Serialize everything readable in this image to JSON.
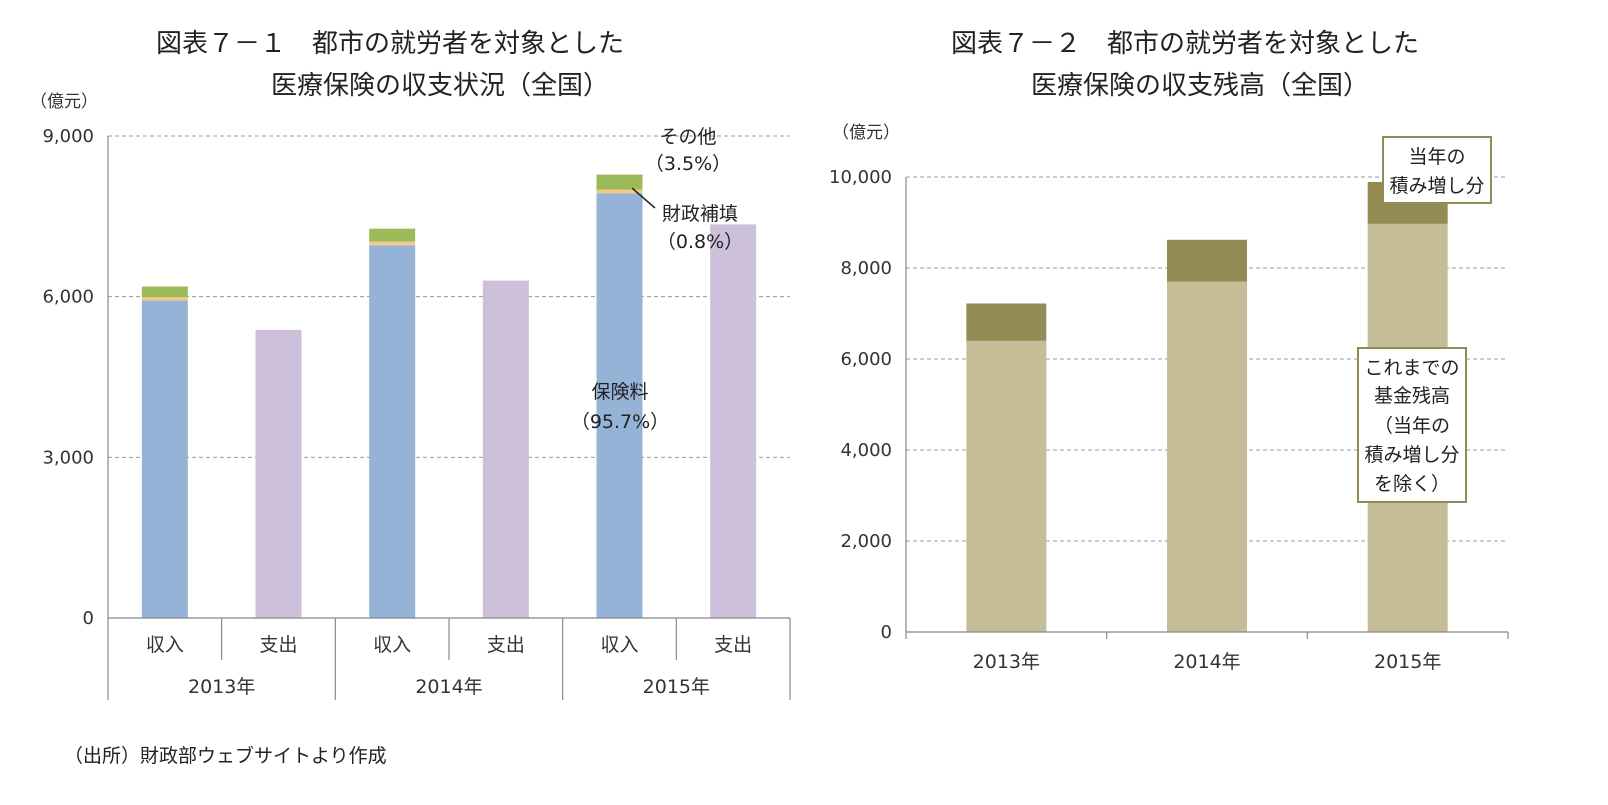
{
  "source": "（出所）財政部ウェブサイトより作成",
  "colors": {
    "premium": "#95b3d7",
    "fiscal": "#f2c98a",
    "other": "#9bbb59",
    "expense": "#ccc0da",
    "balance": "#c4bd97",
    "addition": "#948a54",
    "axis": "#888888",
    "grid": "#999999"
  },
  "chart_data": [
    {
      "type": "bar",
      "stacked": true,
      "title_line1": "図表７－１　都市の就労者を対象とした",
      "title_line2": "医療保険の収支状況（全国）",
      "unit": "（億元）",
      "ylim": [
        0,
        9000
      ],
      "yticks": [
        "0",
        "3,000",
        "6,000",
        "9,000"
      ],
      "grid": true,
      "groups": [
        "2013年",
        "2014年",
        "2015年"
      ],
      "categories": [
        "収入",
        "支出",
        "収入",
        "支出",
        "収入",
        "支出"
      ],
      "series": [
        {
          "key": "premium",
          "values": [
            5930,
            0,
            6960,
            0,
            7930,
            0
          ]
        },
        {
          "key": "fiscal",
          "values": [
            60,
            0,
            70,
            0,
            70,
            0
          ]
        },
        {
          "key": "other",
          "values": [
            200,
            0,
            240,
            0,
            280,
            0
          ]
        },
        {
          "key": "expense",
          "values": [
            0,
            5380,
            0,
            6300,
            0,
            7350
          ]
        }
      ],
      "annotations": {
        "other_label": "その他",
        "other_pct": "（3.5%）",
        "fiscal_label": "財政補填",
        "fiscal_pct": "（0.8%）",
        "premium_label": "保険料",
        "premium_pct": "（95.7%）"
      }
    },
    {
      "type": "bar",
      "stacked": true,
      "title_line1": "図表７－２　都市の就労者を対象とした",
      "title_line2": "医療保険の収支残高（全国）",
      "unit": "（億元）",
      "ylim": [
        0,
        10000
      ],
      "yticks": [
        "0",
        "2,000",
        "4,000",
        "6,000",
        "8,000",
        "10,000"
      ],
      "grid": true,
      "categories": [
        "2013年",
        "2014年",
        "2015年"
      ],
      "series": [
        {
          "key": "balance",
          "values": [
            6400,
            7700,
            8970
          ]
        },
        {
          "key": "addition",
          "values": [
            820,
            920,
            920
          ]
        }
      ],
      "annotations": {
        "addition_line1": "当年の",
        "addition_line2": "積み増し分",
        "balance_line1": "これまでの",
        "balance_line2": "基金残高",
        "balance_line3": "（当年の",
        "balance_line4": "積み増し分",
        "balance_line5": "を除く）"
      }
    }
  ]
}
